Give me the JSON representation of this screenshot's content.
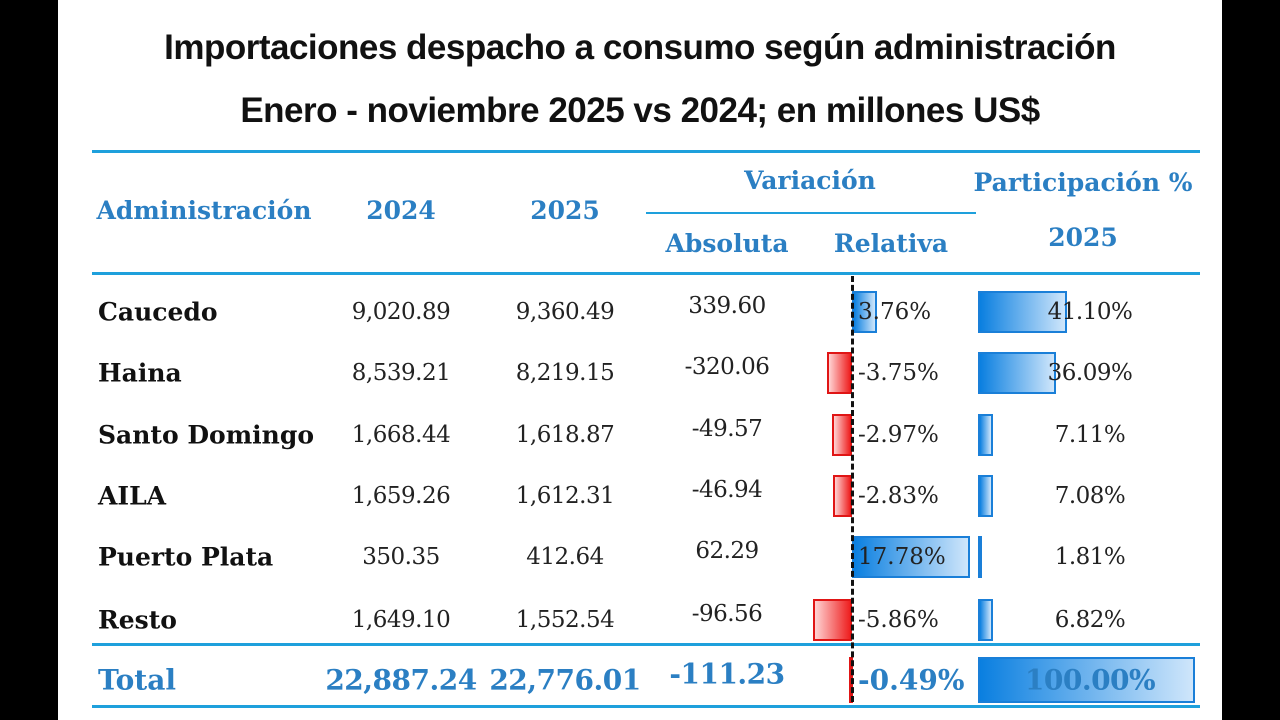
{
  "title": {
    "line1": "Importaciones despacho a consumo según administración",
    "line2": "Enero - noviembre 2025 vs 2024; en millones US$"
  },
  "headers": {
    "administracion": "Administración",
    "y2024": "2024",
    "y2025": "2025",
    "variacion": "Variación",
    "absoluta": "Absoluta",
    "relativa": "Relativa",
    "participacion": "Participación %",
    "participacion_year": "2025"
  },
  "colors": {
    "header": "#2b7fc3",
    "rule": "#1ea0dc",
    "positive_bar": "#1a7fd8",
    "negative_bar": "#e01515"
  },
  "rows": [
    {
      "name": "Caucedo",
      "y2024": "9,020.89",
      "y2025": "9,360.49",
      "abs": "339.60",
      "rel": "3.76%",
      "rel_value": 3.76,
      "part": "41.10%",
      "part_value": 41.1
    },
    {
      "name": "Haina",
      "y2024": "8,539.21",
      "y2025": "8,219.15",
      "abs": "-320.06",
      "rel": "-3.75%",
      "rel_value": -3.75,
      "part": "36.09%",
      "part_value": 36.09
    },
    {
      "name": "Santo Domingo",
      "y2024": "1,668.44",
      "y2025": "1,618.87",
      "abs": "-49.57",
      "rel": "-2.97%",
      "rel_value": -2.97,
      "part": "7.11%",
      "part_value": 7.11
    },
    {
      "name": "AILA",
      "y2024": "1,659.26",
      "y2025": "1,612.31",
      "abs": "-46.94",
      "rel": "-2.83%",
      "rel_value": -2.83,
      "part": "7.08%",
      "part_value": 7.08
    },
    {
      "name": "Puerto Plata",
      "y2024": "350.35",
      "y2025": "412.64",
      "abs": "62.29",
      "rel": "17.78%",
      "rel_value": 17.78,
      "part": "1.81%",
      "part_value": 1.81
    },
    {
      "name": "Resto",
      "y2024": "1,649.10",
      "y2025": "1,552.54",
      "abs": "-96.56",
      "rel": "-5.86%",
      "rel_value": -5.86,
      "part": "6.82%",
      "part_value": 6.82
    }
  ],
  "total": {
    "name": "Total",
    "y2024": "22,887.24",
    "y2025": "22,776.01",
    "abs": "-111.23",
    "rel": "-0.49%",
    "rel_value": -0.49,
    "part": "100.00%",
    "part_value": 100
  }
}
